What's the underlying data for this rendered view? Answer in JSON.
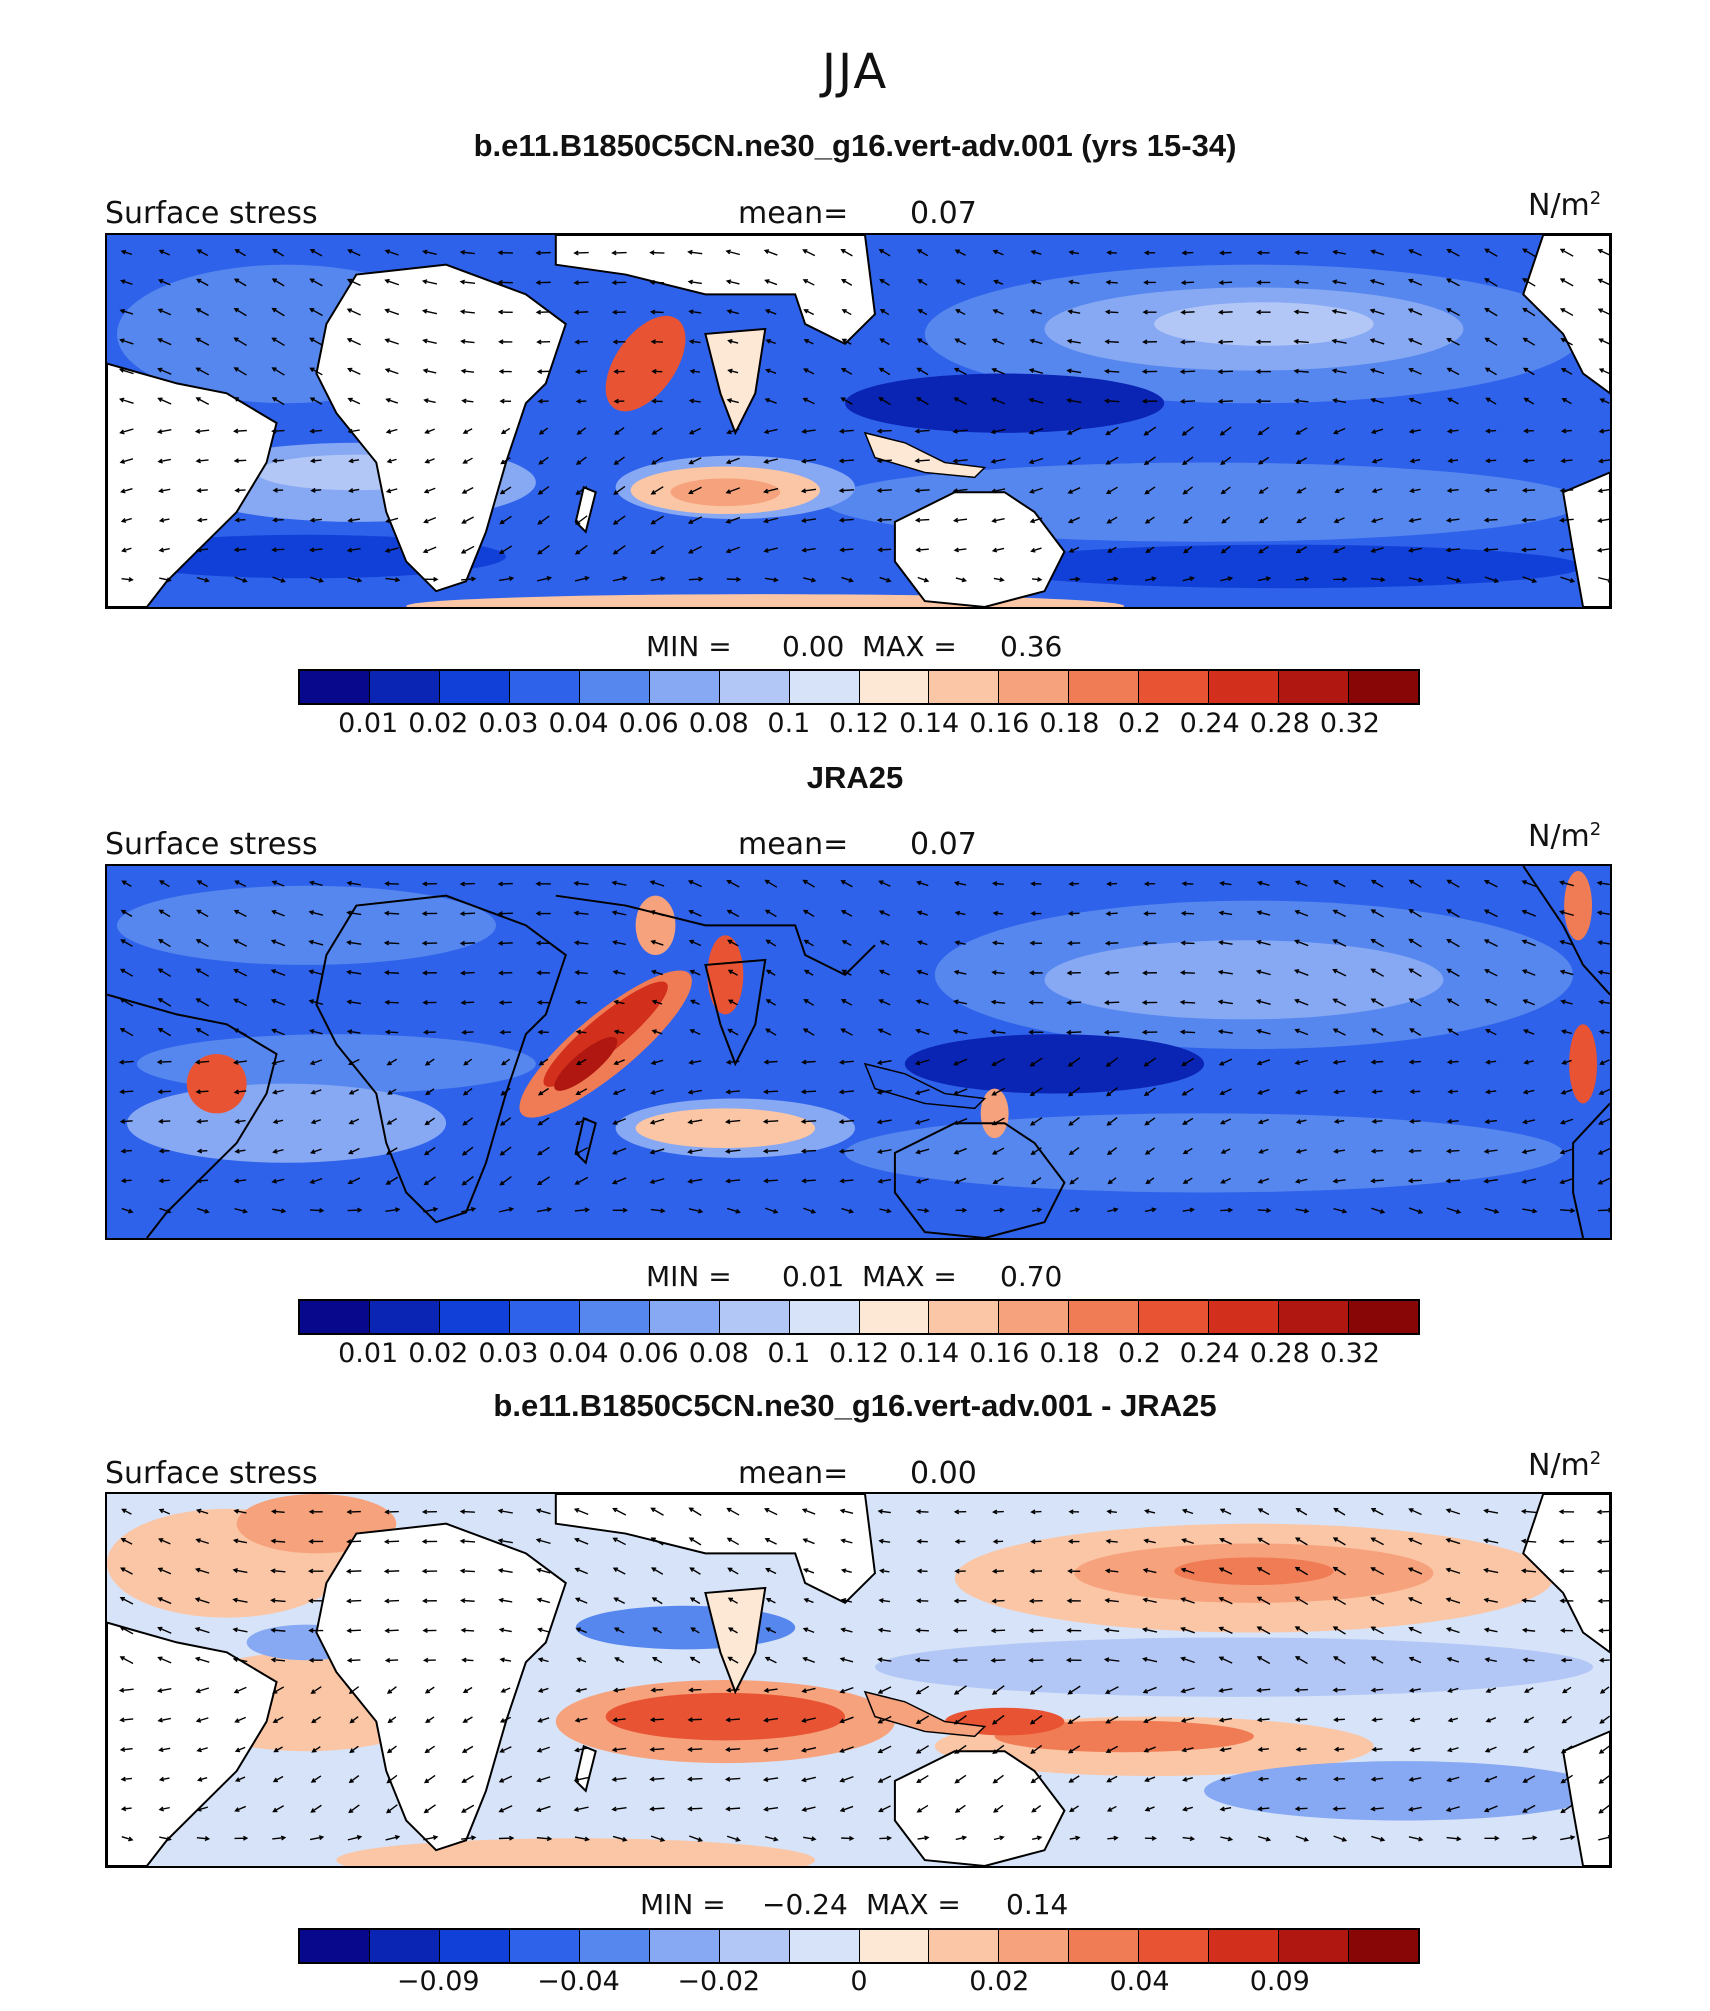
{
  "figure": {
    "title": "JJA"
  },
  "colors": [
    "#08088c",
    "#0a24b4",
    "#1040d8",
    "#2f62ea",
    "#5687ef",
    "#87a8f3",
    "#b2c7f6",
    "#d7e3f8",
    "#fde8d6",
    "#fbc6a5",
    "#f6a27c",
    "#f07c55",
    "#e85433",
    "#d2301c",
    "#b01710",
    "#880606"
  ],
  "panels": [
    {
      "title": "b.e11.B1850C5CN.ne30_g16.vert-adv.001 (yrs 15-34)",
      "variable": "Surface stress",
      "mean_label": "mean=",
      "mean_value": "0.07",
      "units": "N/m",
      "units_sup": "2",
      "min_label": "MIN =",
      "min_value": "0.00",
      "max_label": "MAX =",
      "max_value": "0.36",
      "tick_labels": [
        "0.01",
        "0.02",
        "0.03",
        "0.04",
        "0.06",
        "0.08",
        "0.1",
        "0.12",
        "0.14",
        "0.16",
        "0.18",
        "0.2",
        "0.24",
        "0.28",
        "0.32"
      ]
    },
    {
      "title": "JRA25",
      "variable": "Surface stress",
      "mean_label": "mean=",
      "mean_value": "0.07",
      "units": "N/m",
      "units_sup": "2",
      "min_label": "MIN =",
      "min_value": "0.01",
      "max_label": "MAX =",
      "max_value": "0.70",
      "tick_labels": [
        "0.01",
        "0.02",
        "0.03",
        "0.04",
        "0.06",
        "0.08",
        "0.1",
        "0.12",
        "0.14",
        "0.16",
        "0.18",
        "0.2",
        "0.24",
        "0.28",
        "0.32"
      ]
    },
    {
      "title": "b.e11.B1850C5CN.ne30_g16.vert-adv.001 - JRA25",
      "variable": "Surface stress",
      "mean_label": "mean=",
      "mean_value": "0.00",
      "units": "N/m",
      "units_sup": "2",
      "min_label": "MIN =",
      "min_value": "−0.24",
      "max_label": "MAX =",
      "max_value": "0.14",
      "tick_labels": [
        "−0.09",
        "−0.04",
        "−0.02",
        "0",
        "0.02",
        "0.04",
        "0.09"
      ]
    }
  ]
}
